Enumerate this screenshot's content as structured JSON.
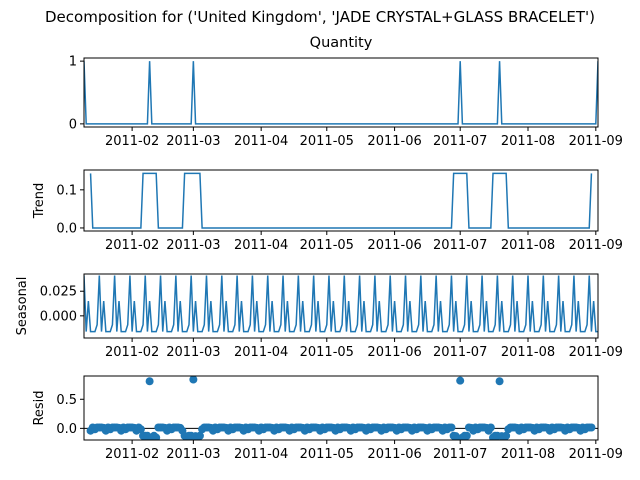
{
  "figure": {
    "title": "Decomposition for ('United Kingdom', 'JADE CRYSTAL+GLASS BRACELET')",
    "line_color": "#1f77b4",
    "zero_line_color": "#000000"
  },
  "chart_data": [
    {
      "type": "line",
      "title": "Quantity",
      "ylabel": "",
      "x_type": "date",
      "xlim": [
        "2011-01-10",
        "2011-09-02"
      ],
      "ylim": [
        -0.05,
        1.05
      ],
      "yticks": [
        0,
        1
      ],
      "ytick_labels": [
        "0",
        "1"
      ],
      "xticks": [
        "2011-02-01",
        "2011-03-01",
        "2011-04-01",
        "2011-05-01",
        "2011-06-01",
        "2011-07-01",
        "2011-08-01",
        "2011-09-01"
      ],
      "xtick_labels": [
        "2011-02",
        "2011-03",
        "2011-04",
        "2011-05",
        "2011-06",
        "2011-07",
        "2011-08",
        "2011-09"
      ],
      "series": [
        {
          "x": [
            "2011-01-10",
            "2011-01-11",
            "2011-02-08",
            "2011-02-09",
            "2011-02-10",
            "2011-02-28",
            "2011-03-01",
            "2011-03-02",
            "2011-06-30",
            "2011-07-01",
            "2011-07-02",
            "2011-07-18",
            "2011-07-19",
            "2011-07-20",
            "2011-09-01",
            "2011-09-02"
          ],
          "y": [
            1,
            0,
            0,
            1,
            0,
            0,
            1,
            0,
            0,
            1,
            0,
            0,
            1,
            0,
            0,
            1
          ]
        }
      ]
    },
    {
      "type": "line",
      "title": "",
      "ylabel": "Trend",
      "x_type": "date",
      "xlim": [
        "2011-01-10",
        "2011-09-02"
      ],
      "ylim": [
        -0.008,
        0.152
      ],
      "yticks": [
        0,
        0.1
      ],
      "ytick_labels": [
        "0.0",
        "0.1"
      ],
      "xticks": [
        "2011-02-01",
        "2011-03-01",
        "2011-04-01",
        "2011-05-01",
        "2011-06-01",
        "2011-07-01",
        "2011-08-01",
        "2011-09-01"
      ],
      "xtick_labels": [
        "2011-02",
        "2011-03",
        "2011-04",
        "2011-05",
        "2011-06",
        "2011-07",
        "2011-08",
        "2011-09"
      ],
      "series": [
        {
          "x": [
            "2011-01-13",
            "2011-01-14",
            "2011-02-05",
            "2011-02-06",
            "2011-02-12",
            "2011-02-13",
            "2011-02-24",
            "2011-02-25",
            "2011-03-04",
            "2011-03-05",
            "2011-06-27",
            "2011-06-28",
            "2011-07-04",
            "2011-07-05",
            "2011-07-15",
            "2011-07-16",
            "2011-07-22",
            "2011-07-23",
            "2011-08-29",
            "2011-08-30"
          ],
          "y": [
            0.143,
            0,
            0,
            0.143,
            0.143,
            0,
            0,
            0.143,
            0.143,
            0,
            0,
            0.143,
            0.143,
            0,
            0,
            0.143,
            0.143,
            0,
            0,
            0.143
          ]
        }
      ]
    },
    {
      "type": "line",
      "title": "",
      "ylabel": "Seasonal",
      "x_type": "date",
      "xlim": [
        "2011-01-10",
        "2011-09-02"
      ],
      "ylim": [
        -0.0225,
        0.0425
      ],
      "yticks": [
        0,
        0.025
      ],
      "ytick_labels": [
        "0.000",
        "0.025"
      ],
      "xticks": [
        "2011-02-01",
        "2011-03-01",
        "2011-04-01",
        "2011-05-01",
        "2011-06-01",
        "2011-07-01",
        "2011-08-01",
        "2011-09-01"
      ],
      "xtick_labels": [
        "2011-02",
        "2011-03",
        "2011-04",
        "2011-05",
        "2011-06",
        "2011-07",
        "2011-08",
        "2011-09"
      ],
      "period_start": "2011-01-10",
      "period_end": "2011-09-02",
      "weekly_pattern": [
        0.041,
        -0.016,
        0.015,
        -0.016,
        -0.016,
        -0.016,
        -0.009
      ]
    },
    {
      "type": "scatter",
      "title": "",
      "ylabel": "Resid",
      "x_type": "date",
      "xlim": [
        "2011-01-10",
        "2011-09-02"
      ],
      "ylim": [
        -0.2,
        0.9
      ],
      "yticks": [
        0,
        0.5
      ],
      "ytick_labels": [
        "0.0",
        "0.5"
      ],
      "zero_line": true,
      "xticks": [
        "2011-02-01",
        "2011-03-01",
        "2011-04-01",
        "2011-05-01",
        "2011-06-01",
        "2011-07-01",
        "2011-08-01",
        "2011-09-01"
      ],
      "xtick_labels": [
        "2011-02",
        "2011-03",
        "2011-04",
        "2011-05",
        "2011-06",
        "2011-07",
        "2011-08",
        "2011-09"
      ],
      "range_start": "2011-01-13",
      "range_end": "2011-08-30",
      "weekly_pattern": [
        -0.04,
        0.015,
        -0.015,
        0.015,
        0.015,
        0.015,
        0.009
      ],
      "block_offset": -0.143,
      "blocks": [
        [
          "2011-02-06",
          "2011-02-12"
        ],
        [
          "2011-02-25",
          "2011-03-04"
        ],
        [
          "2011-06-28",
          "2011-07-04"
        ],
        [
          "2011-07-16",
          "2011-07-22"
        ]
      ],
      "outliers": [
        {
          "x": "2011-02-09",
          "y": 0.81
        },
        {
          "x": "2011-03-01",
          "y": 0.84
        },
        {
          "x": "2011-07-01",
          "y": 0.82
        },
        {
          "x": "2011-07-19",
          "y": 0.81
        }
      ]
    }
  ]
}
